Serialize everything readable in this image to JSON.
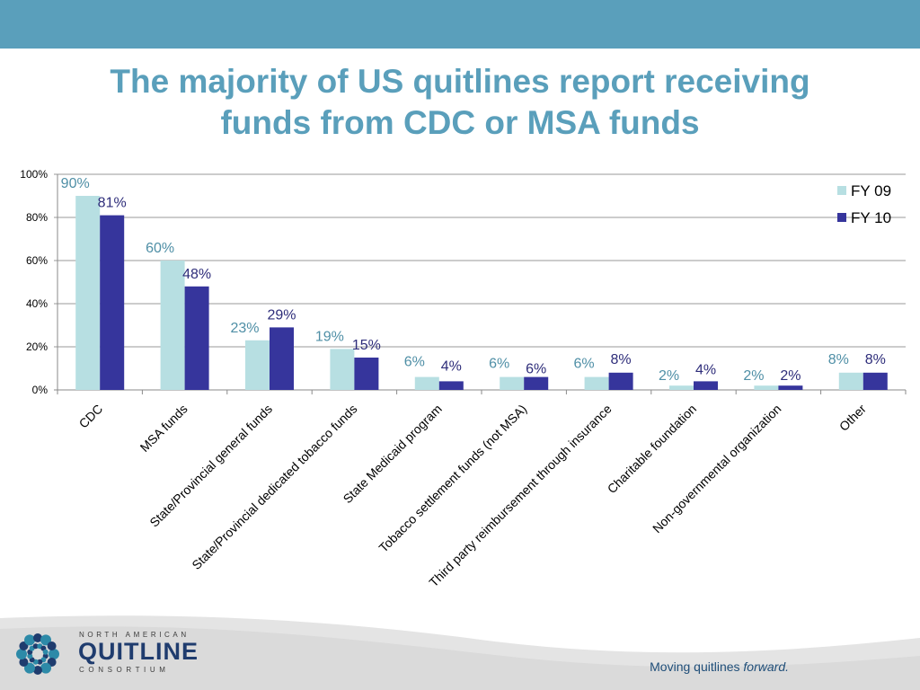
{
  "slide": {
    "title_line1": "The majority of US quitlines report receiving",
    "title_line2": "funds from CDC or MSA funds",
    "tagline_main": "Moving quitlines",
    "tagline_emph": "forward.",
    "colors": {
      "band": "#5a9fbb",
      "title": "#5a9fbb"
    }
  },
  "logo": {
    "line1": "NORTH AMERICAN",
    "line2": "QUITLINE",
    "line3": "CONSORTIUM",
    "colors": {
      "teal": "#2d8aa8",
      "navy": "#1f3c6e"
    }
  },
  "chart_data": {
    "type": "bar",
    "categories": [
      "CDC",
      "MSA funds",
      "State/Provincial general funds",
      "State/Provincial dedicated tobacco funds",
      "State Medicaid program",
      "Tobacco settlement funds (not MSA)",
      "Third party reimbursement through insurance",
      "Charitable foundation",
      "Non-governmental organization",
      "Other"
    ],
    "series": [
      {
        "name": "FY 09",
        "values": [
          90,
          60,
          23,
          19,
          6,
          6,
          6,
          2,
          2,
          8
        ],
        "labels": [
          "90%",
          "60%",
          "23%",
          "19%",
          "6%",
          "6%",
          "6%",
          "2%",
          "2%",
          "8%"
        ],
        "color": "#b7dfe2",
        "label_color": "#4f8fa6"
      },
      {
        "name": "FY 10",
        "values": [
          81,
          48,
          29,
          15,
          4,
          6,
          8,
          4,
          2,
          8
        ],
        "labels": [
          "81%",
          "48%",
          "29%",
          "15%",
          "4%",
          "6%",
          "8%",
          "4%",
          "2%",
          "8%"
        ],
        "color": "#36359c",
        "label_color": "#2e2d7a"
      }
    ],
    "yticks": [
      "0%",
      "20%",
      "40%",
      "60%",
      "80%",
      "100%"
    ],
    "ylim": [
      0,
      100
    ],
    "grid": true,
    "legend_position": "top-right"
  }
}
